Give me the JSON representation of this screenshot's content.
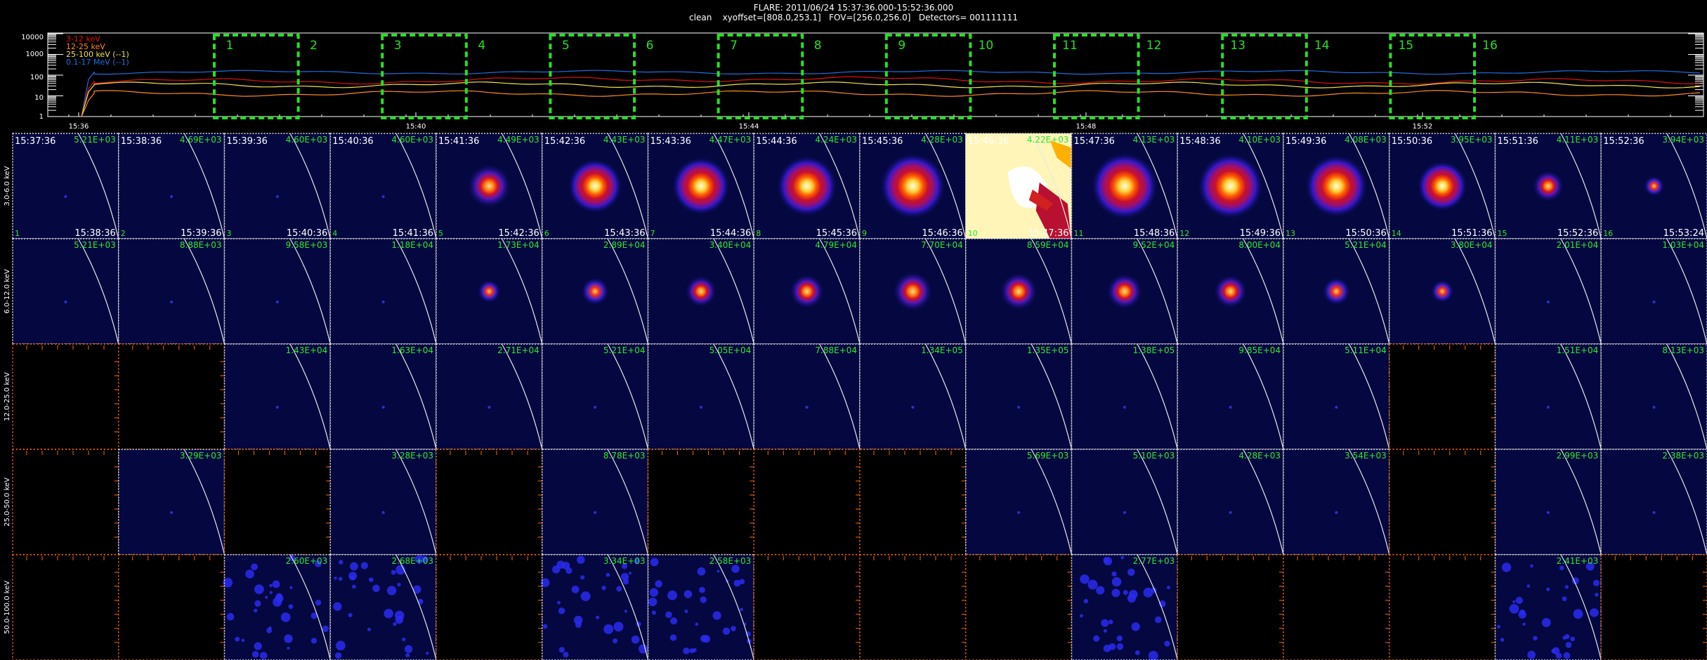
{
  "header": {
    "title": "FLARE: 2011/06/24 15:37:36.000-15:52:36.000",
    "subtitle": "clean    xyoffset=[808.0,253.1]   FOV=[256.0,256.0]   Detectors= 001111111"
  },
  "lightcurve": {
    "legend": [
      {
        "label": "3-12 keV",
        "color": "#e01010"
      },
      {
        "label": "12-25 keV",
        "color": "#ff8a1c"
      },
      {
        "label": "25-100 keV (--1)",
        "color": "#f2e34a"
      },
      {
        "label": "0.1-17 MeV (--1)",
        "color": "#1d6fe0"
      }
    ],
    "y_ticks": [
      "10000",
      "1000",
      "100",
      "10",
      "1"
    ],
    "x_ticks": [
      "15:36",
      "15:40",
      "15:44",
      "15:48",
      "15:52"
    ],
    "interval_labels": [
      "1",
      "2",
      "3",
      "4",
      "5",
      "6",
      "7",
      "8",
      "9",
      "10",
      "11",
      "12",
      "13",
      "14",
      "15",
      "16"
    ],
    "box_color": "#26e024"
  },
  "grid": {
    "bands": [
      "3.0-6.0 keV",
      "6.0-12.0 keV",
      "12.0-25.0 keV",
      "25.0-50.0 keV",
      "50.0-100.0 keV"
    ],
    "start_times": [
      "15:37:36",
      "15:38:36",
      "15:39:36",
      "15:40:36",
      "15:41:36",
      "15:42:36",
      "15:43:36",
      "15:44:36",
      "15:45:36",
      "15:46:36",
      "15:47:36",
      "15:48:36",
      "15:49:36",
      "15:50:36",
      "15:51:36",
      "15:52:36"
    ],
    "end_times": [
      "15:38:36",
      "15:39:36",
      "15:40:36",
      "15:41:36",
      "15:42:36",
      "15:43:36",
      "15:44:36",
      "15:45:36",
      "15:46:36",
      "15:47:36",
      "15:48:36",
      "15:49:36",
      "15:50:36",
      "15:51:36",
      "15:52:36",
      "15:53:24"
    ],
    "interval_numbers": [
      "1",
      "2",
      "3",
      "4",
      "5",
      "6",
      "7",
      "8",
      "9",
      "10",
      "11",
      "12",
      "13",
      "14",
      "15",
      "16"
    ],
    "values": [
      [
        "5.21E+03",
        "4.69E+03",
        "4.60E+03",
        "4.60E+03",
        "4.49E+03",
        "4.43E+03",
        "4.47E+03",
        "4.24E+03",
        "4.28E+03",
        "4.22E+03",
        "4.13E+03",
        "4.10E+03",
        "4.08E+03",
        "3.95E+03",
        "4.11E+03",
        "3.94E+03"
      ],
      [
        "5.21E+03",
        "8.88E+03",
        "9.58E+03",
        "1.18E+04",
        "1.73E+04",
        "2.89E+04",
        "3.40E+04",
        "4.79E+04",
        "7.70E+04",
        "8.59E+04",
        "9.52E+04",
        "8.00E+04",
        "5.21E+04",
        "3.80E+04",
        "2.01E+04",
        "1.03E+04"
      ],
      [
        "",
        "",
        "1.43E+04",
        "1.63E+04",
        "2.71E+04",
        "5.21E+04",
        "5.05E+04",
        "7.88E+04",
        "1.34E+05",
        "1.35E+05",
        "1.38E+05",
        "9.85E+04",
        "5.11E+04",
        "",
        "1.51E+04",
        "8.13E+03"
      ],
      [
        "",
        "3.29E+03",
        "",
        "3.28E+03",
        "",
        "8.78E+03",
        "",
        "",
        "",
        "5.69E+03",
        "5.10E+03",
        "4.28E+03",
        "3.54E+03",
        "",
        "2.99E+03",
        "2.38E+03"
      ],
      [
        "",
        "",
        "2.60E+03",
        "2.68E+03",
        "",
        "3.34E+03",
        "2.58E+03",
        "",
        "",
        "",
        "2.77E+03",
        "",
        "",
        "",
        "2.41E+03",
        ""
      ]
    ],
    "panel_states": [
      [
        "faint",
        "faint",
        "faint",
        "faint",
        "source",
        "source",
        "source",
        "source",
        "source",
        "saturated",
        "source",
        "source",
        "source",
        "source",
        "source",
        "source"
      ],
      [
        "faint",
        "faint",
        "faint",
        "faint",
        "source",
        "source",
        "source",
        "source",
        "source",
        "source",
        "source",
        "source",
        "source",
        "source",
        "faint",
        "faint"
      ],
      [
        "empty",
        "empty",
        "faint",
        "faint",
        "faint",
        "faint",
        "faint",
        "faint",
        "faint",
        "faint",
        "faint",
        "faint",
        "faint",
        "empty",
        "faint",
        "faint"
      ],
      [
        "empty",
        "faint",
        "empty",
        "faint",
        "empty",
        "faint",
        "empty",
        "empty",
        "empty",
        "faint",
        "faint",
        "faint",
        "faint",
        "empty",
        "faint",
        "faint"
      ],
      [
        "empty",
        "empty",
        "noise",
        "noise",
        "empty",
        "noise",
        "noise",
        "empty",
        "empty",
        "empty",
        "noise",
        "empty",
        "empty",
        "empty",
        "noise",
        "empty"
      ]
    ],
    "source_strength_3_6": [
      0.08,
      0.12,
      0.13,
      0.25,
      0.55,
      0.72,
      0.78,
      0.82,
      0.9,
      1.0,
      0.92,
      0.9,
      0.85,
      0.65,
      0.35,
      0.18
    ],
    "source_strength_6_12": [
      0.02,
      0.05,
      0.08,
      0.15,
      0.22,
      0.3,
      0.35,
      0.4,
      0.48,
      0.45,
      0.42,
      0.38,
      0.3,
      0.22,
      0.1,
      0.05
    ],
    "colors": {
      "value_text": "#2ee82e",
      "panel_bg": "#050840",
      "grid_line": "#dcdcdc",
      "axis_orange": "#ff6a00",
      "limb": "#e8e8e8"
    }
  }
}
